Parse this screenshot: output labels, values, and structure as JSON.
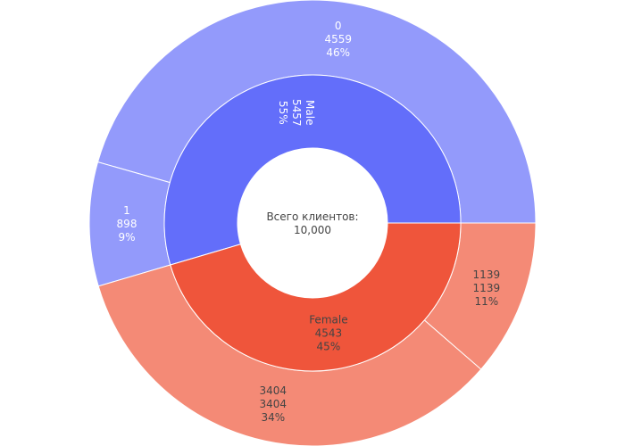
{
  "center": {
    "line1": "Всего клиентов:",
    "line2": "10,000"
  },
  "colors": {
    "male_inner": "#636efa",
    "male_outer": "#939afb",
    "female_inner": "#ef553b",
    "female_outer": "#f48a76",
    "text_light": "#ffffff",
    "text_dark": "#444444"
  },
  "chart_data": {
    "type": "sunburst",
    "total": 10000,
    "center_label": "Всего клиентов:\n10,000",
    "inner_ring": [
      {
        "label": "Male",
        "value": 5457,
        "percent": "55%"
      },
      {
        "label": "Female",
        "value": 4543,
        "percent": "45%"
      }
    ],
    "outer_ring": [
      {
        "parent": "Male",
        "label": "0",
        "value": 4559,
        "percent": "46%"
      },
      {
        "parent": "Male",
        "label": "1",
        "value": 898,
        "percent": "9%"
      },
      {
        "parent": "Female",
        "label": "3404",
        "value": 3404,
        "percent": "34%"
      },
      {
        "parent": "Female",
        "label": "1139",
        "value": 1139,
        "percent": "11%"
      }
    ]
  }
}
